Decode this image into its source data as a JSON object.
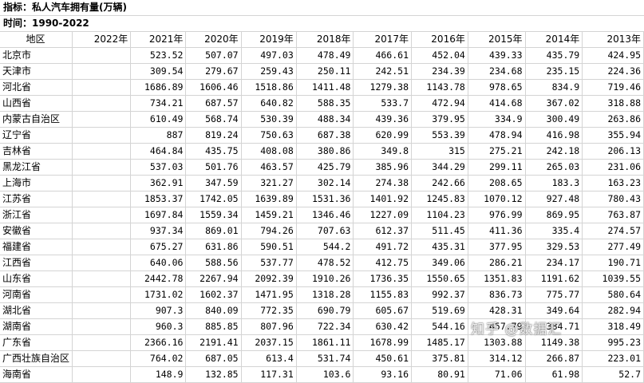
{
  "meta": {
    "indicator": "指标：私人汽车拥有量(万辆)",
    "period": "时间：1990-2022"
  },
  "columns": [
    "地区",
    "2022年",
    "2021年",
    "2020年",
    "2019年",
    "2018年",
    "2017年",
    "2016年",
    "2015年",
    "2014年",
    "2013年"
  ],
  "rows": [
    {
      "region": "北京市",
      "values": [
        "",
        "523.52",
        "507.07",
        "497.03",
        "478.49",
        "466.61",
        "452.04",
        "439.33",
        "435.79",
        "424.95"
      ]
    },
    {
      "region": "天津市",
      "values": [
        "",
        "309.54",
        "279.67",
        "259.43",
        "250.11",
        "242.51",
        "234.39",
        "234.68",
        "235.15",
        "224.36"
      ]
    },
    {
      "region": "河北省",
      "values": [
        "",
        "1686.89",
        "1606.46",
        "1518.86",
        "1411.48",
        "1279.38",
        "1143.78",
        "978.65",
        "834.9",
        "719.46"
      ]
    },
    {
      "region": "山西省",
      "values": [
        "",
        "734.21",
        "687.57",
        "640.82",
        "588.35",
        "533.7",
        "472.94",
        "414.68",
        "367.02",
        "318.88"
      ]
    },
    {
      "region": "内蒙古自治区",
      "values": [
        "",
        "610.49",
        "568.74",
        "530.39",
        "488.34",
        "439.36",
        "379.95",
        "334.9",
        "300.49",
        "263.86"
      ]
    },
    {
      "region": "辽宁省",
      "values": [
        "",
        "887",
        "819.24",
        "750.63",
        "687.38",
        "620.99",
        "553.39",
        "478.94",
        "416.98",
        "355.94"
      ]
    },
    {
      "region": "吉林省",
      "values": [
        "",
        "464.84",
        "435.75",
        "408.08",
        "380.86",
        "349.8",
        "315",
        "275.21",
        "242.18",
        "206.13"
      ]
    },
    {
      "region": "黑龙江省",
      "values": [
        "",
        "537.03",
        "501.76",
        "463.57",
        "425.79",
        "385.96",
        "344.29",
        "299.11",
        "265.03",
        "231.06"
      ]
    },
    {
      "region": "上海市",
      "values": [
        "",
        "362.91",
        "347.59",
        "321.27",
        "302.14",
        "274.38",
        "242.66",
        "208.65",
        "183.3",
        "163.23"
      ]
    },
    {
      "region": "江苏省",
      "values": [
        "",
        "1853.37",
        "1742.05",
        "1639.89",
        "1531.36",
        "1401.92",
        "1245.83",
        "1070.12",
        "927.48",
        "780.43"
      ]
    },
    {
      "region": "浙江省",
      "values": [
        "",
        "1697.84",
        "1559.34",
        "1459.21",
        "1346.46",
        "1227.09",
        "1104.23",
        "976.99",
        "869.95",
        "763.87"
      ]
    },
    {
      "region": "安徽省",
      "values": [
        "",
        "937.34",
        "869.01",
        "794.26",
        "707.63",
        "612.37",
        "511.45",
        "411.36",
        "335.4",
        "274.57"
      ]
    },
    {
      "region": "福建省",
      "values": [
        "",
        "675.27",
        "631.86",
        "590.51",
        "544.2",
        "491.72",
        "435.31",
        "377.95",
        "329.53",
        "277.49"
      ]
    },
    {
      "region": "江西省",
      "values": [
        "",
        "640.06",
        "588.56",
        "537.77",
        "478.52",
        "412.75",
        "349.06",
        "286.21",
        "234.17",
        "190.71"
      ]
    },
    {
      "region": "山东省",
      "values": [
        "",
        "2442.78",
        "2267.94",
        "2092.39",
        "1910.26",
        "1736.35",
        "1550.65",
        "1351.83",
        "1191.62",
        "1039.55"
      ]
    },
    {
      "region": "河南省",
      "values": [
        "",
        "1731.02",
        "1602.37",
        "1471.95",
        "1318.28",
        "1155.83",
        "992.37",
        "836.73",
        "775.77",
        "580.64"
      ]
    },
    {
      "region": "湖北省",
      "values": [
        "",
        "907.3",
        "840.09",
        "772.35",
        "690.79",
        "605.67",
        "519.69",
        "428.31",
        "349.64",
        "282.94"
      ]
    },
    {
      "region": "湖南省",
      "values": [
        "",
        "960.3",
        "885.85",
        "807.96",
        "722.34",
        "630.42",
        "544.16",
        "457.79",
        "384.71",
        "318.49"
      ]
    },
    {
      "region": "广东省",
      "values": [
        "",
        "2366.16",
        "2191.41",
        "2037.15",
        "1861.11",
        "1678.99",
        "1485.17",
        "1303.88",
        "1149.38",
        "995.23"
      ]
    },
    {
      "region": "广西壮族自治区",
      "values": [
        "",
        "764.02",
        "687.05",
        "613.4",
        "531.74",
        "450.61",
        "375.81",
        "314.12",
        "266.87",
        "223.01"
      ]
    },
    {
      "region": "海南省",
      "values": [
        "",
        "148.9",
        "132.85",
        "117.31",
        "103.6",
        "93.16",
        "80.91",
        "71.06",
        "61.98",
        "52.7"
      ]
    }
  ],
  "watermark": "知乎 @数据汇"
}
